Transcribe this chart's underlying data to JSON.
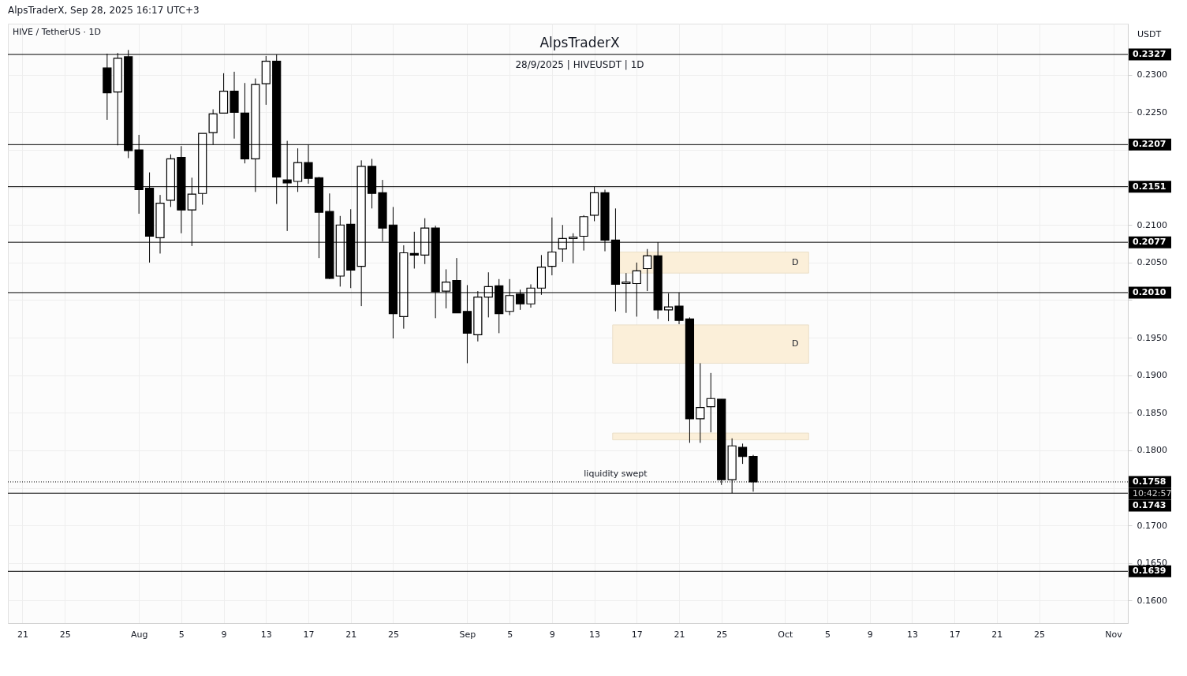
{
  "chart_data": {
    "type": "candlestick",
    "title": "AlpsTraderX",
    "subtitle": "28/9/2025 | HIVEUSDT | 1D",
    "ylabel": "USDT",
    "x": [
      "2025-07-29",
      "2025-07-30",
      "2025-07-31",
      "2025-08-01",
      "2025-08-02",
      "2025-08-03",
      "2025-08-04",
      "2025-08-05",
      "2025-08-06",
      "2025-08-07",
      "2025-08-08",
      "2025-08-09",
      "2025-08-10",
      "2025-08-11",
      "2025-08-12",
      "2025-08-13",
      "2025-08-14",
      "2025-08-15",
      "2025-08-16",
      "2025-08-17",
      "2025-08-18",
      "2025-08-19",
      "2025-08-20",
      "2025-08-21",
      "2025-08-22",
      "2025-08-23",
      "2025-08-24",
      "2025-08-25",
      "2025-08-26",
      "2025-08-27",
      "2025-08-28",
      "2025-08-29",
      "2025-08-30",
      "2025-08-31",
      "2025-09-01",
      "2025-09-02",
      "2025-09-03",
      "2025-09-04",
      "2025-09-05",
      "2025-09-06",
      "2025-09-07",
      "2025-09-08",
      "2025-09-09",
      "2025-09-10",
      "2025-09-11",
      "2025-09-12",
      "2025-09-13",
      "2025-09-14",
      "2025-09-15",
      "2025-09-16",
      "2025-09-17",
      "2025-09-18",
      "2025-09-19",
      "2025-09-20",
      "2025-09-21",
      "2025-09-22",
      "2025-09-23",
      "2025-09-24",
      "2025-09-25",
      "2025-09-26",
      "2025-09-27",
      "2025-09-28"
    ],
    "ohlc": [
      [
        0.2309,
        0.2328,
        0.224,
        0.2276
      ],
      [
        0.2277,
        0.2329,
        0.2206,
        0.2322
      ],
      [
        0.2324,
        0.2333,
        0.2189,
        0.2199
      ],
      [
        0.22,
        0.222,
        0.2115,
        0.2147
      ],
      [
        0.2149,
        0.217,
        0.205,
        0.2085
      ],
      [
        0.2083,
        0.214,
        0.2062,
        0.2129
      ],
      [
        0.2133,
        0.2194,
        0.2124,
        0.2188
      ],
      [
        0.219,
        0.2205,
        0.2089,
        0.212
      ],
      [
        0.212,
        0.2163,
        0.2072,
        0.2141
      ],
      [
        0.2142,
        0.2222,
        0.2127,
        0.2222
      ],
      [
        0.2223,
        0.2254,
        0.2207,
        0.2248
      ],
      [
        0.2249,
        0.2302,
        0.2249,
        0.2278
      ],
      [
        0.2278,
        0.2304,
        0.2215,
        0.225
      ],
      [
        0.2249,
        0.2289,
        0.2182,
        0.2188
      ],
      [
        0.2188,
        0.2295,
        0.2144,
        0.2287
      ],
      [
        0.2288,
        0.2325,
        0.226,
        0.2318
      ],
      [
        0.2318,
        0.2327,
        0.2128,
        0.2164
      ],
      [
        0.216,
        0.2212,
        0.2092,
        0.2156
      ],
      [
        0.2158,
        0.2202,
        0.2144,
        0.2183
      ],
      [
        0.2183,
        0.2207,
        0.2155,
        0.2162
      ],
      [
        0.2163,
        0.2164,
        0.2056,
        0.2117
      ],
      [
        0.2118,
        0.2142,
        0.2028,
        0.2029
      ],
      [
        0.2032,
        0.2112,
        0.2018,
        0.21
      ],
      [
        0.2101,
        0.2121,
        0.2016,
        0.204
      ],
      [
        0.2045,
        0.2186,
        0.1992,
        0.2178
      ],
      [
        0.2178,
        0.2188,
        0.2122,
        0.2142
      ],
      [
        0.2143,
        0.216,
        0.2078,
        0.2096
      ],
      [
        0.21,
        0.2124,
        0.1949,
        0.1982
      ],
      [
        0.1978,
        0.2073,
        0.1962,
        0.2063
      ],
      [
        0.2062,
        0.2091,
        0.2042,
        0.206
      ],
      [
        0.206,
        0.2109,
        0.2048,
        0.2096
      ],
      [
        0.2096,
        0.2099,
        0.1976,
        0.2011
      ],
      [
        0.2012,
        0.2041,
        0.1989,
        0.2024
      ],
      [
        0.2026,
        0.2056,
        0.1983,
        0.1983
      ],
      [
        0.1985,
        0.202,
        0.1916,
        0.1956
      ],
      [
        0.1954,
        0.2012,
        0.1945,
        0.2004
      ],
      [
        0.2004,
        0.2037,
        0.1977,
        0.2018
      ],
      [
        0.2019,
        0.2028,
        0.1956,
        0.1982
      ],
      [
        0.1985,
        0.2028,
        0.198,
        0.2006
      ],
      [
        0.2008,
        0.2014,
        0.1987,
        0.1995
      ],
      [
        0.1995,
        0.2021,
        0.199,
        0.2016
      ],
      [
        0.2016,
        0.206,
        0.2007,
        0.2044
      ],
      [
        0.2045,
        0.211,
        0.2033,
        0.2064
      ],
      [
        0.2068,
        0.21,
        0.2051,
        0.2082
      ],
      [
        0.2082,
        0.2089,
        0.2049,
        0.2084
      ],
      [
        0.2085,
        0.2113,
        0.2066,
        0.2111
      ],
      [
        0.2113,
        0.2151,
        0.2105,
        0.2143
      ],
      [
        0.2143,
        0.2147,
        0.2065,
        0.208
      ],
      [
        0.208,
        0.2122,
        0.1985,
        0.2021
      ],
      [
        0.2022,
        0.2036,
        0.1983,
        0.2024
      ],
      [
        0.2022,
        0.205,
        0.1978,
        0.2039
      ],
      [
        0.2042,
        0.2068,
        0.2012,
        0.2059
      ],
      [
        0.2059,
        0.2077,
        0.1975,
        0.1987
      ],
      [
        0.1987,
        0.2009,
        0.1972,
        0.1991
      ],
      [
        0.1992,
        0.201,
        0.1968,
        0.1973
      ],
      [
        0.1975,
        0.1977,
        0.181,
        0.1842
      ],
      [
        0.1842,
        0.1916,
        0.181,
        0.1857
      ],
      [
        0.1858,
        0.1903,
        0.1824,
        0.1869
      ],
      [
        0.1868,
        0.1868,
        0.1754,
        0.1761
      ],
      [
        0.1761,
        0.1816,
        0.1743,
        0.1806
      ],
      [
        0.1804,
        0.1809,
        0.1782,
        0.1792
      ],
      [
        0.1792,
        0.1794,
        0.1745,
        0.1758
      ]
    ],
    "colors": [
      "#000000",
      "#ffffff",
      "#000000",
      "#000000",
      "#000000",
      "#ffffff",
      "#ffffff",
      "#000000",
      "#ffffff",
      "#ffffff",
      "#ffffff",
      "#ffffff",
      "#000000",
      "#000000",
      "#ffffff",
      "#ffffff",
      "#000000",
      "#000000",
      "#ffffff",
      "#000000",
      "#000000",
      "#000000",
      "#ffffff",
      "#000000",
      "#ffffff",
      "#000000",
      "#000000",
      "#000000",
      "#ffffff",
      "#000000",
      "#ffffff",
      "#000000",
      "#ffffff",
      "#000000",
      "#000000",
      "#ffffff",
      "#ffffff",
      "#000000",
      "#ffffff",
      "#000000",
      "#ffffff",
      "#ffffff",
      "#ffffff",
      "#ffffff",
      "#ffffff",
      "#ffffff",
      "#ffffff",
      "#000000",
      "#000000",
      "#ffffff",
      "#ffffff",
      "#ffffff",
      "#000000",
      "#ffffff",
      "#000000",
      "#000000",
      "#ffffff",
      "#ffffff",
      "#000000",
      "#ffffff",
      "#000000",
      "#000000"
    ],
    "xlim": [
      "2025-07-20",
      "2025-11-02"
    ],
    "xticks": [
      {
        "value": "2025-07-21",
        "label": "21"
      },
      {
        "value": "2025-07-25",
        "label": "25"
      },
      {
        "value": "2025-08-01",
        "label": "Aug"
      },
      {
        "value": "2025-08-05",
        "label": "5"
      },
      {
        "value": "2025-08-09",
        "label": "9"
      },
      {
        "value": "2025-08-13",
        "label": "13"
      },
      {
        "value": "2025-08-17",
        "label": "17"
      },
      {
        "value": "2025-08-21",
        "label": "21"
      },
      {
        "value": "2025-08-25",
        "label": "25"
      },
      {
        "value": "2025-09-01",
        "label": "Sep"
      },
      {
        "value": "2025-09-05",
        "label": "5"
      },
      {
        "value": "2025-09-09",
        "label": "9"
      },
      {
        "value": "2025-09-13",
        "label": "13"
      },
      {
        "value": "2025-09-17",
        "label": "17"
      },
      {
        "value": "2025-09-21",
        "label": "21"
      },
      {
        "value": "2025-09-25",
        "label": "25"
      },
      {
        "value": "2025-10-01",
        "label": "Oct"
      },
      {
        "value": "2025-10-05",
        "label": "5"
      },
      {
        "value": "2025-10-09",
        "label": "9"
      },
      {
        "value": "2025-10-13",
        "label": "13"
      },
      {
        "value": "2025-10-17",
        "label": "17"
      },
      {
        "value": "2025-10-21",
        "label": "21"
      },
      {
        "value": "2025-10-25",
        "label": "25"
      },
      {
        "value": "2025-11-01",
        "label": "Nov"
      }
    ],
    "ylim": [
      0.157,
      0.2368
    ],
    "yticks": [
      {
        "value": 0.16,
        "label": "0.1600"
      },
      {
        "value": 0.165,
        "label": "0.1650"
      },
      {
        "value": 0.17,
        "label": "0.1700"
      },
      {
        "value": 0.175,
        "label": null
      },
      {
        "value": 0.18,
        "label": "0.1800"
      },
      {
        "value": 0.185,
        "label": "0.1850"
      },
      {
        "value": 0.19,
        "label": "0.1900"
      },
      {
        "value": 0.195,
        "label": "0.1950"
      },
      {
        "value": 0.2,
        "label": null
      },
      {
        "value": 0.205,
        "label": "0.2050"
      },
      {
        "value": 0.21,
        "label": "0.2100"
      },
      {
        "value": 0.215,
        "label": null
      },
      {
        "value": 0.22,
        "label": null
      },
      {
        "value": 0.225,
        "label": "0.2250"
      },
      {
        "value": 0.23,
        "label": "0.2300"
      }
    ],
    "grid": true,
    "ref_lines": [
      {
        "axis": "y",
        "value": 0.2327,
        "label": "0.2327"
      },
      {
        "axis": "y",
        "value": 0.2207,
        "label": "0.2207"
      },
      {
        "axis": "y",
        "value": 0.2151,
        "label": "0.2151"
      },
      {
        "axis": "y",
        "value": 0.2077,
        "label": "0.2077"
      },
      {
        "axis": "y",
        "value": 0.201,
        "label": "0.2010"
      },
      {
        "axis": "y",
        "value": 0.1758,
        "label": "0.1758",
        "line_style": "dotted"
      },
      {
        "axis": "y",
        "value": 0.1743,
        "label": "0.1743"
      },
      {
        "axis": "y",
        "value": 0.1639,
        "label": "0.1639"
      }
    ],
    "bands": [
      {
        "axis": "y",
        "from": 0.2036,
        "to": 0.2064,
        "label": "D",
        "color": "#fbefd9"
      },
      {
        "axis": "y",
        "from": 0.1916,
        "to": 0.1967,
        "label": "D",
        "color": "#fbefd9"
      },
      {
        "axis": "y",
        "from": 0.1814,
        "to": 0.1823,
        "label": null,
        "color": "#fbefd9"
      }
    ],
    "annotations": [
      "AlpsTraderX, Sep 28, 2025 16:17 UTC+3",
      "HIVE / TetherUS · 1D",
      "10:42:57",
      {
        "text": "liquidity swept",
        "x": "2025-09-15",
        "y": 0.1763
      }
    ]
  }
}
